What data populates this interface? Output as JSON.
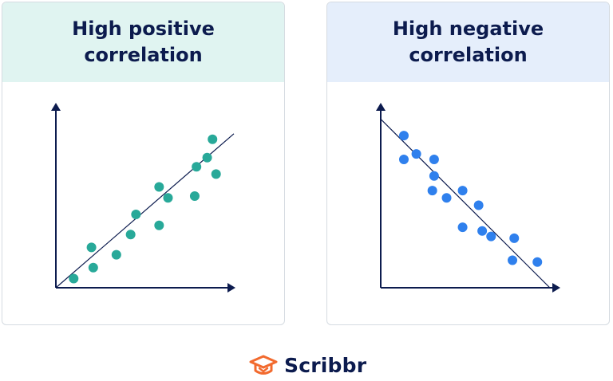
{
  "colors": {
    "header_positive": "#e0f4f1",
    "header_negative": "#e5eefb",
    "axis": "#0c1b4e",
    "dot_positive": "#28a999",
    "dot_negative": "#2f80ed",
    "title": "#0c1b4e",
    "logo_orange": "#f26a2e"
  },
  "brand": {
    "name": "Scribbr",
    "logo_icon": "graduation-cap-icon"
  },
  "chart_data": [
    {
      "type": "scatter",
      "title": "High positive correlation",
      "xlabel": "",
      "ylabel": "",
      "xlim": [
        0,
        10
      ],
      "ylim": [
        0,
        10
      ],
      "grid": false,
      "trendline": {
        "from": [
          0,
          0
        ],
        "to": [
          10,
          8.4
        ]
      },
      "points": [
        {
          "x": 1.0,
          "y": 0.5
        },
        {
          "x": 2.0,
          "y": 2.2
        },
        {
          "x": 2.1,
          "y": 1.1
        },
        {
          "x": 3.4,
          "y": 1.8
        },
        {
          "x": 4.2,
          "y": 2.9
        },
        {
          "x": 4.5,
          "y": 4.0
        },
        {
          "x": 5.8,
          "y": 3.4
        },
        {
          "x": 5.8,
          "y": 5.5
        },
        {
          "x": 6.3,
          "y": 4.9
        },
        {
          "x": 7.8,
          "y": 5.0
        },
        {
          "x": 7.9,
          "y": 6.6
        },
        {
          "x": 8.5,
          "y": 7.1
        },
        {
          "x": 8.8,
          "y": 8.1
        },
        {
          "x": 9.0,
          "y": 6.2
        }
      ]
    },
    {
      "type": "scatter",
      "title": "High negative correlation",
      "xlabel": "",
      "ylabel": "",
      "xlim": [
        0,
        10
      ],
      "ylim": [
        0,
        10
      ],
      "grid": false,
      "trendline": {
        "from": [
          0,
          9.2
        ],
        "to": [
          9.5,
          0
        ]
      },
      "points": [
        {
          "x": 1.3,
          "y": 8.3
        },
        {
          "x": 1.3,
          "y": 7.0
        },
        {
          "x": 2.0,
          "y": 7.3
        },
        {
          "x": 3.0,
          "y": 7.0
        },
        {
          "x": 3.0,
          "y": 6.1
        },
        {
          "x": 2.9,
          "y": 5.3
        },
        {
          "x": 3.7,
          "y": 4.9
        },
        {
          "x": 4.6,
          "y": 5.3
        },
        {
          "x": 5.5,
          "y": 4.5
        },
        {
          "x": 4.6,
          "y": 3.3
        },
        {
          "x": 5.7,
          "y": 3.1
        },
        {
          "x": 6.2,
          "y": 2.8
        },
        {
          "x": 7.5,
          "y": 2.7
        },
        {
          "x": 7.4,
          "y": 1.5
        },
        {
          "x": 8.8,
          "y": 1.4
        }
      ]
    }
  ]
}
